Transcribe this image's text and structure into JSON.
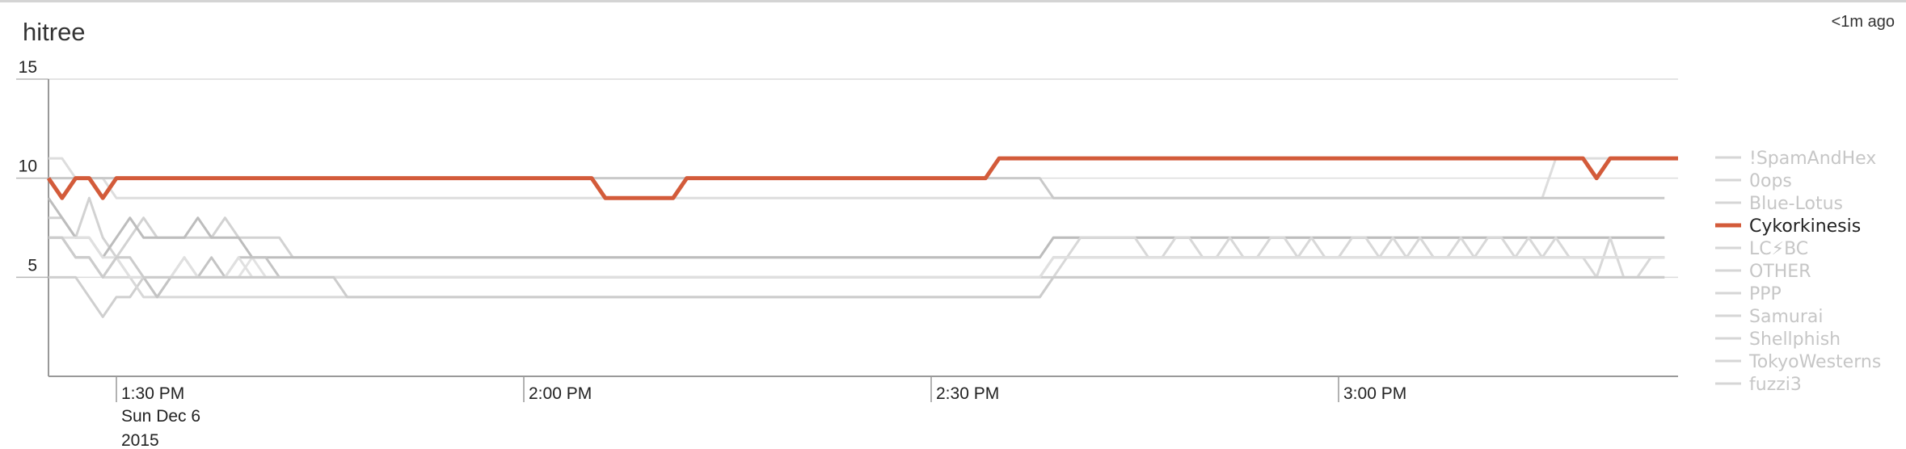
{
  "panel": {
    "title": "hitree",
    "updated": "<1m ago"
  },
  "colors": {
    "highlight": "#d35b3a",
    "gray_lines": [
      "#dddddd",
      "#d2d2d2",
      "#c9c9c9",
      "#bdbdbd",
      "#e2e2e2",
      "#cfcfcf",
      "#d8d8d8",
      "#c4c4c4",
      "#e0e0e0",
      "#cccccc"
    ],
    "legend_muted": "#c6c6c6",
    "legend_active": "#222222"
  },
  "chart_data": {
    "type": "line",
    "x_start": "1:25 PM",
    "x_step_minutes": 1,
    "xlim_minutes": [
      0,
      120
    ],
    "ylim": [
      0,
      15
    ],
    "y_ticks": [
      5,
      10,
      15
    ],
    "y_tick_labels": [
      "5",
      "10",
      "15"
    ],
    "x_ticks_minutes": [
      5,
      35,
      65,
      95
    ],
    "x_tick_labels": [
      "1:30 PM",
      "2:00 PM",
      "2:30 PM",
      "3:00 PM"
    ],
    "x_date_label": [
      "Sun Dec 6",
      "2015"
    ],
    "highlight": "Cykorkinesis",
    "grid": "horizontal",
    "legend_position": "right",
    "series": [
      {
        "name": "!SpamAndHex",
        "values": [
          11,
          11,
          10,
          10,
          10,
          9,
          9,
          9,
          9,
          9,
          9,
          9,
          9,
          9,
          9,
          9,
          9,
          9,
          9,
          9,
          9,
          9,
          9,
          9,
          9,
          9,
          9,
          9,
          9,
          9,
          9,
          9,
          9,
          9,
          9,
          9,
          9,
          9,
          9,
          9,
          9,
          9,
          9,
          9,
          9,
          9,
          9,
          9,
          9,
          9,
          9,
          9,
          9,
          9,
          9,
          9,
          9,
          9,
          9,
          9,
          9,
          9,
          9,
          9,
          9,
          9,
          9,
          9,
          9,
          9,
          9,
          9,
          9,
          9,
          9,
          9,
          9,
          9,
          9,
          9,
          9,
          9,
          9,
          9,
          9,
          9,
          9,
          9,
          9,
          9,
          9,
          9,
          9,
          9,
          9,
          9,
          9,
          9,
          9,
          9,
          9,
          9,
          9,
          9,
          9,
          9,
          9,
          9,
          9,
          9,
          9,
          11,
          11,
          11,
          11,
          11,
          11,
          11,
          11,
          11
        ]
      },
      {
        "name": "0ops",
        "values": [
          8,
          8,
          7,
          9,
          7,
          6,
          7,
          8,
          7,
          7,
          7,
          7,
          7,
          8,
          7,
          7,
          7,
          7,
          6,
          6,
          6,
          6,
          6,
          6,
          6,
          6,
          6,
          6,
          6,
          6,
          6,
          6,
          6,
          6,
          6,
          6,
          6,
          6,
          6,
          6,
          6,
          6,
          6,
          6,
          6,
          6,
          6,
          6,
          6,
          6,
          6,
          6,
          6,
          6,
          6,
          6,
          6,
          6,
          6,
          6,
          6,
          6,
          6,
          6,
          6,
          6,
          6,
          6,
          6,
          6,
          6,
          6,
          6,
          6,
          7,
          7,
          7,
          7,
          7,
          7,
          7,
          7,
          7,
          7,
          7,
          7,
          7,
          7,
          7,
          7,
          7,
          7,
          7,
          7,
          7,
          7,
          7,
          7,
          7,
          7,
          7,
          7,
          7,
          7,
          7,
          7,
          7,
          7,
          7,
          7,
          7,
          7,
          7,
          7,
          7,
          7,
          7,
          7,
          7,
          7
        ]
      },
      {
        "name": "Blue-Lotus",
        "values": [
          10,
          10,
          10,
          10,
          10,
          10,
          10,
          10,
          10,
          10,
          10,
          10,
          10,
          10,
          10,
          10,
          10,
          10,
          10,
          10,
          10,
          10,
          10,
          10,
          10,
          10,
          10,
          10,
          10,
          10,
          10,
          10,
          10,
          10,
          10,
          10,
          10,
          10,
          10,
          10,
          10,
          10,
          10,
          10,
          10,
          10,
          10,
          10,
          10,
          10,
          10,
          10,
          10,
          10,
          10,
          10,
          10,
          10,
          10,
          10,
          10,
          10,
          10,
          10,
          10,
          10,
          10,
          10,
          10,
          10,
          10,
          10,
          10,
          10,
          9,
          9,
          9,
          9,
          9,
          9,
          9,
          9,
          9,
          9,
          9,
          9,
          9,
          9,
          9,
          9,
          9,
          9,
          9,
          9,
          9,
          9,
          9,
          9,
          9,
          9,
          9,
          9,
          9,
          9,
          9,
          9,
          9,
          9,
          9,
          9,
          9,
          9,
          9,
          9,
          9,
          9,
          9,
          9,
          9,
          9
        ]
      },
      {
        "name": "Cykorkinesis",
        "values": [
          10,
          9,
          10,
          10,
          9,
          10,
          10,
          10,
          10,
          10,
          10,
          10,
          10,
          10,
          10,
          10,
          10,
          10,
          10,
          10,
          10,
          10,
          10,
          10,
          10,
          10,
          10,
          10,
          10,
          10,
          10,
          10,
          10,
          10,
          10,
          10,
          10,
          10,
          10,
          10,
          10,
          9,
          9,
          9,
          9,
          9,
          9,
          10,
          10,
          10,
          10,
          10,
          10,
          10,
          10,
          10,
          10,
          10,
          10,
          10,
          10,
          10,
          10,
          10,
          10,
          10,
          10,
          10,
          10,
          10,
          11,
          11,
          11,
          11,
          11,
          11,
          11,
          11,
          11,
          11,
          11,
          11,
          11,
          11,
          11,
          11,
          11,
          11,
          11,
          11,
          11,
          11,
          11,
          11,
          11,
          11,
          11,
          11,
          11,
          11,
          11,
          11,
          11,
          11,
          11,
          11,
          11,
          11,
          11,
          11,
          11,
          11,
          11,
          11,
          10,
          11,
          11,
          11,
          11,
          11,
          11
        ]
      },
      {
        "name": "LC⚡BC",
        "values": [
          9,
          8,
          7,
          7,
          6,
          7,
          8,
          7,
          7,
          7,
          7,
          8,
          7,
          7,
          7,
          6,
          6,
          6,
          6,
          6,
          6,
          6,
          6,
          6,
          6,
          6,
          6,
          6,
          6,
          6,
          6,
          6,
          6,
          6,
          6,
          6,
          6,
          6,
          6,
          6,
          6,
          6,
          6,
          6,
          6,
          6,
          6,
          6,
          6,
          6,
          6,
          6,
          6,
          6,
          6,
          6,
          6,
          6,
          6,
          6,
          6,
          6,
          6,
          6,
          6,
          6,
          6,
          6,
          6,
          6,
          6,
          6,
          6,
          6,
          7,
          7,
          7,
          7,
          7,
          7,
          7,
          7,
          7,
          7,
          7,
          7,
          7,
          7,
          7,
          7,
          7,
          7,
          7,
          7,
          7,
          7,
          7,
          7,
          7,
          7,
          7,
          7,
          7,
          7,
          7,
          7,
          7,
          7,
          7,
          7,
          7,
          7,
          7,
          7,
          7,
          7,
          7,
          7,
          7,
          7
        ]
      },
      {
        "name": "OTHER",
        "values": [
          7,
          7,
          6,
          6,
          5,
          6,
          6,
          5,
          5,
          5,
          5,
          5,
          5,
          5,
          5,
          6,
          5,
          5,
          5,
          5,
          5,
          5,
          5,
          5,
          5,
          5,
          5,
          5,
          5,
          5,
          5,
          5,
          5,
          5,
          5,
          5,
          5,
          5,
          5,
          5,
          5,
          5,
          5,
          5,
          5,
          5,
          5,
          5,
          5,
          5,
          5,
          5,
          5,
          5,
          5,
          5,
          5,
          5,
          5,
          5,
          5,
          5,
          5,
          5,
          5,
          5,
          5,
          5,
          5,
          5,
          5,
          5,
          5,
          5,
          6,
          6,
          6,
          6,
          6,
          6,
          6,
          6,
          6,
          6,
          6,
          6,
          6,
          6,
          6,
          6,
          6,
          6,
          6,
          6,
          6,
          6,
          6,
          6,
          6,
          6,
          6,
          6,
          6,
          6,
          6,
          6,
          6,
          6,
          6,
          6,
          6,
          6,
          6,
          6,
          6,
          6,
          6,
          6,
          6,
          6
        ]
      },
      {
        "name": "PPP",
        "values": [
          5,
          5,
          5,
          4,
          3,
          4,
          4,
          5,
          4,
          5,
          5,
          5,
          5,
          5,
          5,
          5,
          5,
          5,
          5,
          5,
          5,
          5,
          5,
          5,
          5,
          5,
          5,
          5,
          5,
          5,
          5,
          5,
          5,
          5,
          5,
          5,
          5,
          5,
          5,
          5,
          5,
          5,
          5,
          5,
          5,
          5,
          5,
          5,
          5,
          5,
          5,
          5,
          5,
          5,
          5,
          5,
          5,
          5,
          5,
          5,
          5,
          5,
          5,
          5,
          5,
          5,
          5,
          5,
          5,
          5,
          5,
          5,
          5,
          5,
          5,
          5,
          5,
          5,
          5,
          5,
          5,
          5,
          5,
          5,
          5,
          5,
          5,
          5,
          5,
          5,
          5,
          5,
          5,
          5,
          5,
          5,
          5,
          5,
          5,
          5,
          5,
          5,
          5,
          5,
          5,
          5,
          5,
          5,
          5,
          5,
          5,
          5,
          5,
          5,
          5,
          5,
          5,
          5,
          5,
          5
        ]
      },
      {
        "name": "Samurai",
        "values": [
          7,
          7,
          6,
          6,
          5,
          5,
          5,
          4,
          4,
          4,
          4,
          4,
          4,
          4,
          4,
          4,
          4,
          4,
          4,
          4,
          4,
          4,
          4,
          4,
          4,
          4,
          4,
          4,
          4,
          4,
          4,
          4,
          4,
          4,
          4,
          4,
          4,
          4,
          4,
          4,
          4,
          4,
          4,
          4,
          4,
          4,
          4,
          4,
          4,
          4,
          4,
          4,
          4,
          4,
          4,
          4,
          4,
          4,
          4,
          4,
          4,
          4,
          4,
          4,
          4,
          4,
          4,
          4,
          4,
          4,
          4,
          4,
          4,
          4,
          5,
          6,
          7,
          7,
          7,
          7,
          7,
          6,
          6,
          7,
          7,
          6,
          6,
          7,
          6,
          6,
          7,
          7,
          6,
          7,
          6,
          6,
          7,
          7,
          6,
          7,
          6,
          7,
          6,
          6,
          7,
          6,
          7,
          7,
          6,
          7,
          6,
          7,
          6,
          6,
          5,
          7,
          5,
          5,
          6,
          6
        ]
      },
      {
        "name": "Shellphish",
        "values": [
          7,
          7,
          6,
          6,
          5,
          6,
          5,
          5,
          4,
          5,
          6,
          5,
          6,
          5,
          6,
          6,
          6,
          5,
          5,
          5,
          5,
          5,
          5,
          5,
          5,
          5,
          5,
          5,
          5,
          5,
          5,
          5,
          5,
          5,
          5,
          5,
          5,
          5,
          5,
          5,
          5,
          5,
          5,
          5,
          5,
          5,
          5,
          5,
          5,
          5,
          5,
          5,
          5,
          5,
          5,
          5,
          5,
          5,
          5,
          5,
          5,
          5,
          5,
          5,
          5,
          5,
          5,
          5,
          5,
          5,
          5,
          5,
          5,
          5,
          6,
          6,
          6,
          6,
          6,
          6,
          6,
          6,
          6,
          6,
          6,
          6,
          6,
          6,
          6,
          6,
          6,
          6,
          6,
          6,
          6,
          6,
          6,
          6,
          6,
          6,
          6,
          6,
          6,
          6,
          6,
          6,
          6,
          6,
          6,
          6,
          6,
          6,
          6,
          6,
          6,
          6,
          6,
          6,
          6,
          6
        ]
      },
      {
        "name": "TokyoWesterns",
        "values": [
          7,
          7,
          7,
          7,
          6,
          6,
          5,
          5,
          5,
          5,
          6,
          5,
          5,
          5,
          6,
          5,
          5,
          5,
          5,
          5,
          5,
          5,
          5,
          5,
          5,
          5,
          5,
          5,
          5,
          5,
          5,
          5,
          5,
          5,
          5,
          5,
          5,
          5,
          5,
          5,
          5,
          5,
          5,
          5,
          5,
          5,
          5,
          5,
          5,
          5,
          5,
          5,
          5,
          5,
          5,
          5,
          5,
          5,
          5,
          5,
          5,
          5,
          5,
          5,
          5,
          5,
          5,
          5,
          5,
          5,
          5,
          5,
          5,
          5,
          6,
          6,
          6,
          6,
          6,
          6,
          6,
          6,
          6,
          6,
          6,
          6,
          6,
          6,
          6,
          6,
          6,
          6,
          6,
          6,
          6,
          6,
          6,
          6,
          6,
          6,
          6,
          6,
          6,
          6,
          6,
          6,
          6,
          6,
          6,
          6,
          6,
          6,
          6,
          6,
          6,
          6,
          6,
          6,
          6,
          6
        ]
      },
      {
        "name": "fuzzi3",
        "values": [
          7,
          7,
          6,
          6,
          5,
          6,
          6,
          5,
          5,
          5,
          5,
          5,
          5,
          5,
          5,
          5,
          5,
          5,
          5,
          5,
          5,
          5,
          4,
          4,
          4,
          4,
          4,
          4,
          4,
          4,
          4,
          4,
          4,
          4,
          4,
          4,
          4,
          4,
          4,
          4,
          4,
          4,
          4,
          4,
          4,
          4,
          4,
          4,
          4,
          4,
          4,
          4,
          4,
          4,
          4,
          4,
          4,
          4,
          4,
          4,
          4,
          4,
          4,
          4,
          4,
          4,
          4,
          4,
          4,
          4,
          4,
          4,
          4,
          4,
          5,
          5,
          5,
          5,
          5,
          5,
          5,
          5,
          5,
          5,
          5,
          5,
          5,
          5,
          5,
          5,
          5,
          5,
          5,
          5,
          5,
          5,
          5,
          5,
          5,
          5,
          5,
          5,
          5,
          5,
          5,
          5,
          5,
          5,
          5,
          5,
          5,
          5,
          5,
          5,
          5,
          5,
          5,
          5,
          5,
          5
        ]
      }
    ]
  }
}
